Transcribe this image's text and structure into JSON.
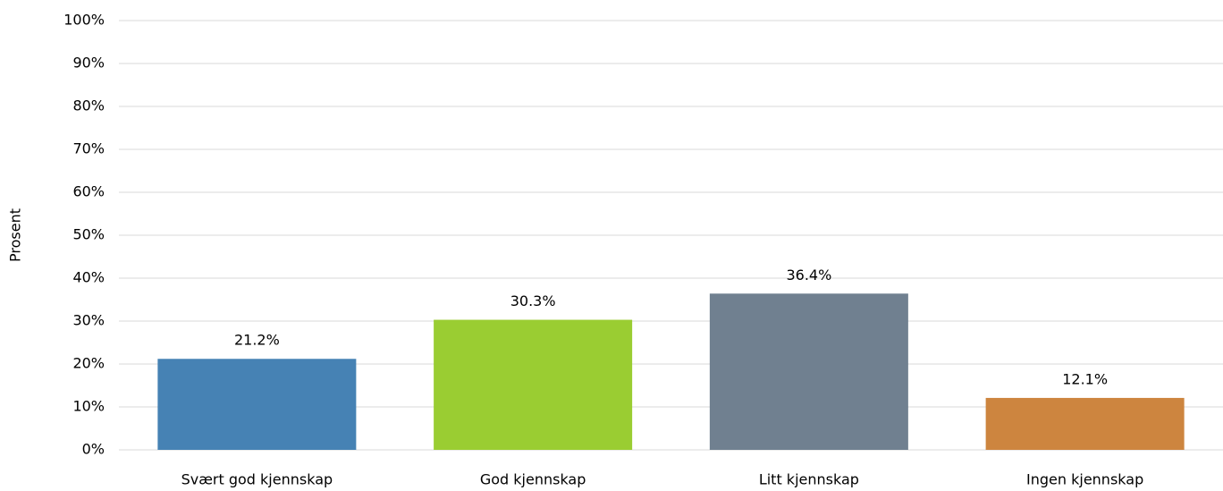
{
  "chart_data": {
    "type": "bar",
    "y_label": "Prosent",
    "categories": [
      "Svært god kjennskap",
      "God kjennskap",
      "Litt kjennskap",
      "Ingen kjennskap"
    ],
    "values": [
      21.2,
      30.3,
      36.4,
      12.1
    ],
    "value_labels": [
      "21.2%",
      "30.3%",
      "36.4%",
      "12.1%"
    ],
    "colors": [
      "#4682b4",
      "#9acd32",
      "#708090",
      "#cd853f"
    ],
    "ylim": [
      0,
      100
    ],
    "yticks": [
      {
        "value": 0,
        "label": "0%"
      },
      {
        "value": 10,
        "label": "10%"
      },
      {
        "value": 20,
        "label": "20%"
      },
      {
        "value": 30,
        "label": "30%"
      },
      {
        "value": 40,
        "label": "40%"
      },
      {
        "value": 50,
        "label": "50%"
      },
      {
        "value": 60,
        "label": "60%"
      },
      {
        "value": 70,
        "label": "70%"
      },
      {
        "value": 80,
        "label": "80%"
      },
      {
        "value": 90,
        "label": "90%"
      },
      {
        "value": 100,
        "label": "100%"
      }
    ],
    "grid": true
  }
}
